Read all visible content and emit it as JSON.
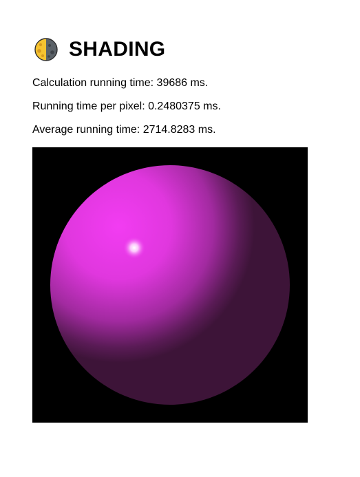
{
  "header": {
    "icon": "last-quarter-moon-icon",
    "title": "SHADING"
  },
  "stats": {
    "calculation": "Calculation running time: 39686 ms.",
    "per_pixel": "Running time per pixel: 0.2480375 ms.",
    "average": "Average running time: 2714.8283 ms."
  },
  "render": {
    "background_color": "#000000",
    "sphere_color": "#f23cf2",
    "shadow_color": "#3d1438",
    "highlight_color": "#ffffff"
  }
}
